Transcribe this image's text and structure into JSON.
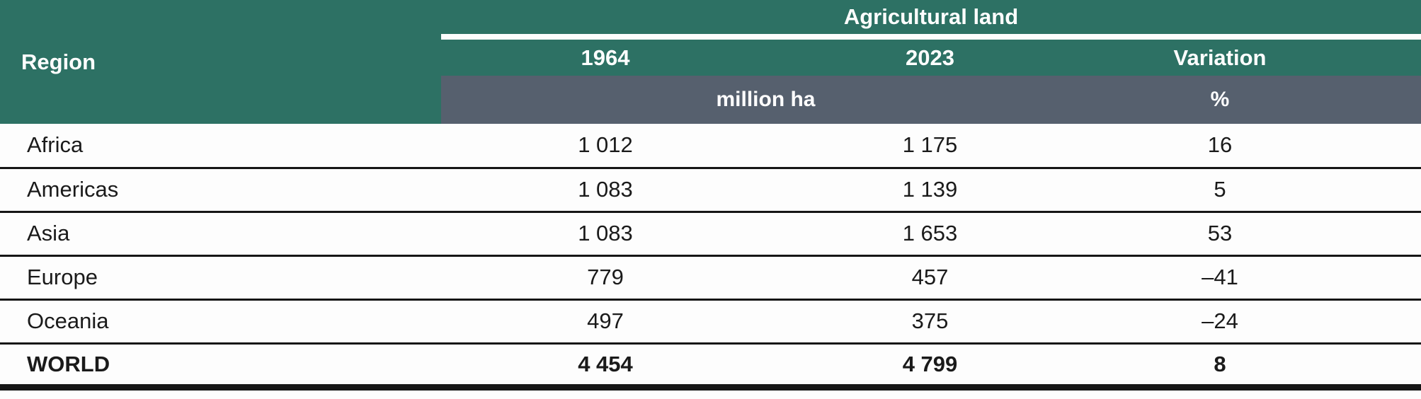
{
  "table": {
    "region_header": "Region",
    "group_header": "Agricultural land",
    "col_headers": [
      "1964",
      "2023",
      "Variation"
    ],
    "unit_ha": "million ha",
    "unit_pct": "%",
    "rows": [
      {
        "region": "Africa",
        "v1964": "1 012",
        "v2023": "1 175",
        "variation": "16"
      },
      {
        "region": "Americas",
        "v1964": "1 083",
        "v2023": "1 139",
        "variation": "5"
      },
      {
        "region": "Asia",
        "v1964": "1 083",
        "v2023": "1 653",
        "variation": "53"
      },
      {
        "region": "Europe",
        "v1964": "779",
        "v2023": "457",
        "variation": "–41"
      },
      {
        "region": "Oceania",
        "v1964": "497",
        "v2023": "375",
        "variation": "–24"
      },
      {
        "region": "WORLD",
        "v1964": "4 454",
        "v2023": "4 799",
        "variation": "8"
      }
    ],
    "colors": {
      "header_teal": "#2d7164",
      "unit_band_slate": "#56606e",
      "rule_black": "#161616",
      "header_text": "#ffffff"
    }
  },
  "chart_data": {
    "type": "table",
    "title": "Agricultural land",
    "columns": [
      "Region",
      "1964 (million ha)",
      "2023 (million ha)",
      "Variation (%)"
    ],
    "rows": [
      [
        "Africa",
        1012,
        1175,
        16
      ],
      [
        "Americas",
        1083,
        1139,
        5
      ],
      [
        "Asia",
        1083,
        1653,
        53
      ],
      [
        "Europe",
        779,
        457,
        -41
      ],
      [
        "Oceania",
        497,
        375,
        -24
      ],
      [
        "WORLD",
        4454,
        4799,
        8
      ]
    ]
  }
}
